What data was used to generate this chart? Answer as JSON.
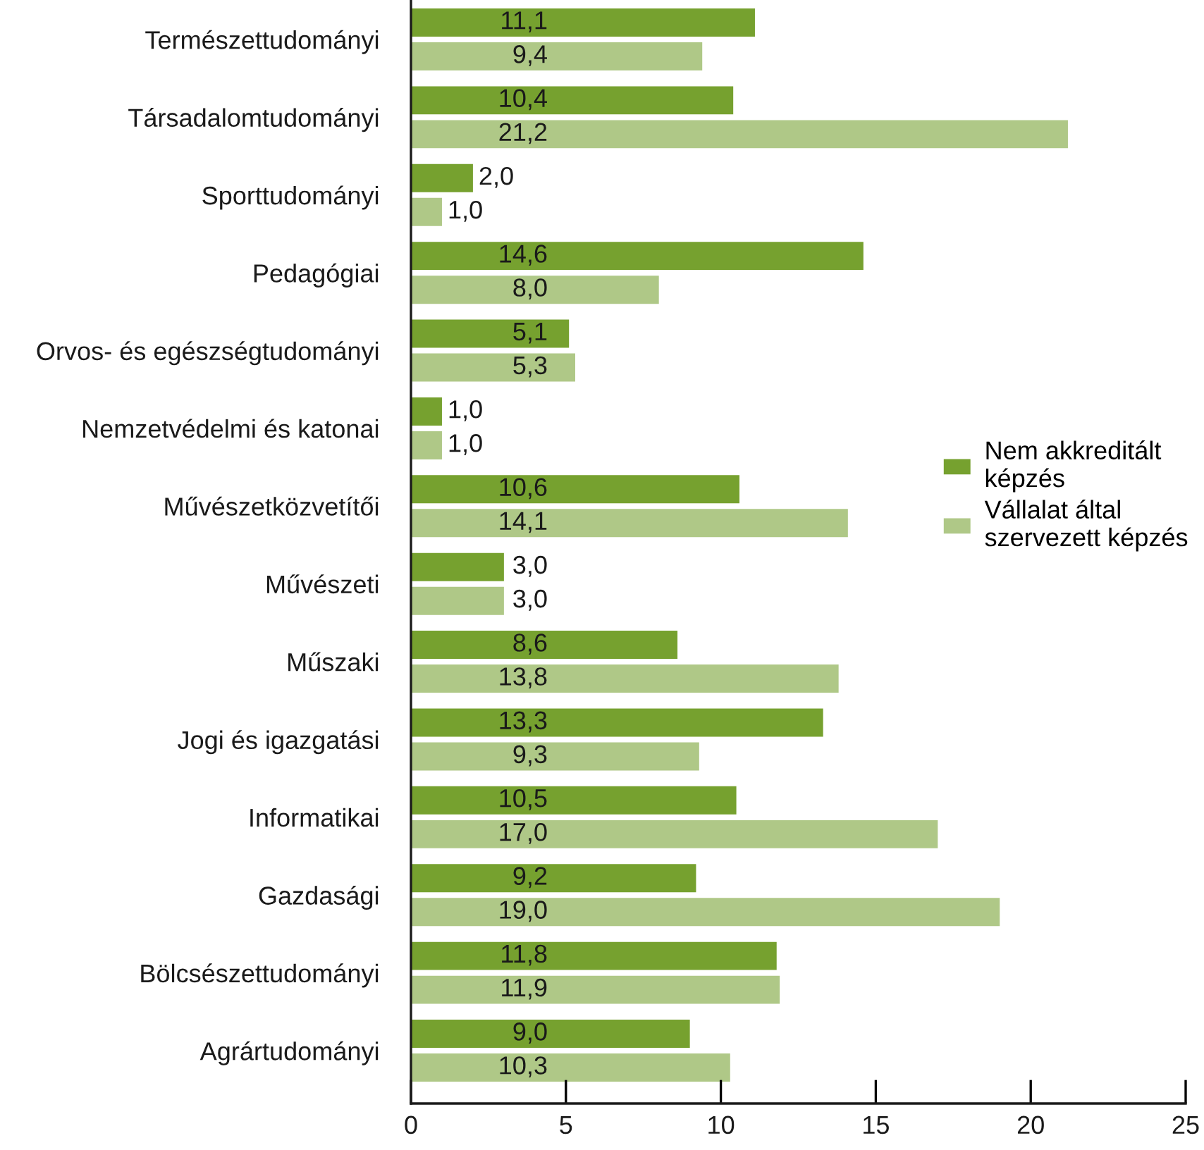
{
  "chart_data": {
    "type": "bar",
    "orientation": "horizontal",
    "categories": [
      "Természettudományi",
      "Társadalomtudományi",
      "Sporttudományi",
      "Pedagógiai",
      "Orvos- és egészségtudományi",
      "Nemzetvédelmi és katonai",
      "Művészetközvetítői",
      "Művészeti",
      "Műszaki",
      "Jogi és igazgatási",
      "Informatikai",
      "Gazdasági",
      "Bölcsészettudományi",
      "Agrártudományi"
    ],
    "series": [
      {
        "name": "Nem akkreditált képzés",
        "color": "#76a12f",
        "values": [
          11.1,
          10.4,
          2.0,
          14.6,
          5.1,
          1.0,
          10.6,
          3.0,
          8.6,
          13.3,
          10.5,
          9.2,
          11.8,
          9.0
        ],
        "value_labels": [
          "11,1",
          "10,4",
          "2,0",
          "14,6",
          "5,1",
          "1,0",
          "10,6",
          "3,0",
          "8,6",
          "13,3",
          "10,5",
          "9,2",
          "11,8",
          "9,0"
        ]
      },
      {
        "name": "Vállalat által szervezett képzés",
        "color": "#afc887",
        "values": [
          9.4,
          21.2,
          1.0,
          8.0,
          5.3,
          1.0,
          14.1,
          3.0,
          13.8,
          9.3,
          17.0,
          19.0,
          11.9,
          10.3
        ],
        "value_labels": [
          "9,4",
          "21,2",
          "1,0",
          "8,0",
          "5,3",
          "1,0",
          "14,1",
          "3,0",
          "13,8",
          "9,3",
          "17,0",
          "19,0",
          "11,9",
          "10,3"
        ]
      }
    ],
    "xlim": [
      0,
      25
    ],
    "xticks": [
      0,
      5,
      10,
      15,
      20,
      25
    ],
    "grid": false,
    "legend": "right"
  }
}
